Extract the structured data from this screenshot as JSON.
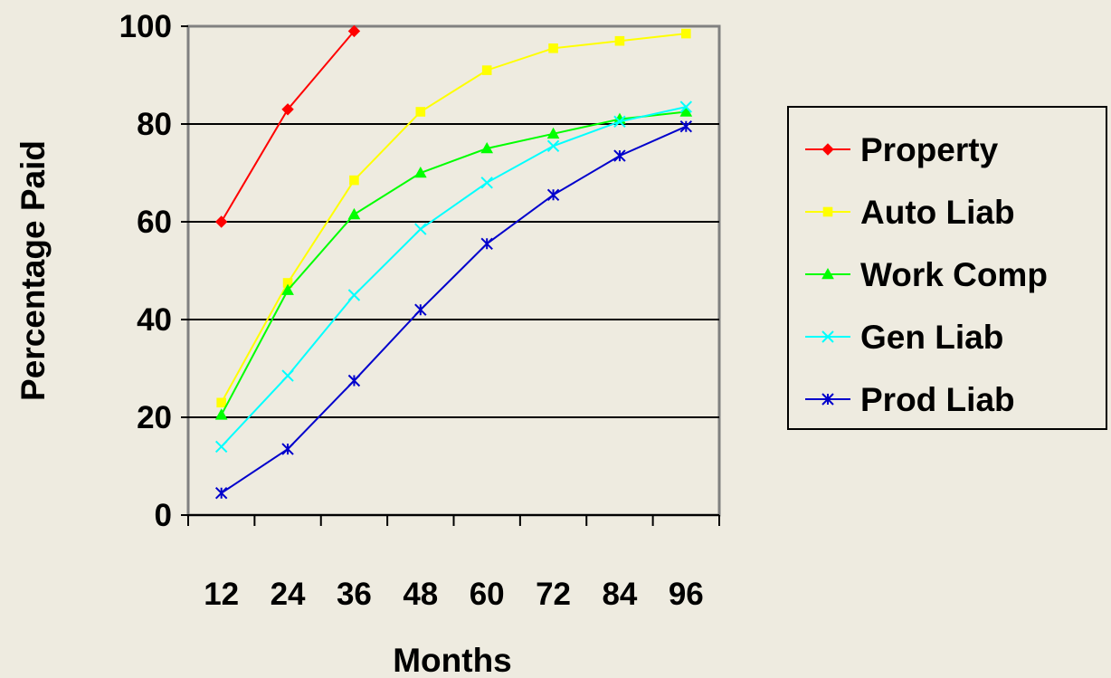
{
  "chart_data": {
    "type": "line",
    "title": "",
    "xlabel": "Months",
    "ylabel": "Percentage Paid",
    "categories": [
      "12",
      "24",
      "36",
      "48",
      "60",
      "72",
      "84",
      "96"
    ],
    "ylim": [
      0,
      100
    ],
    "yticks": [
      "0",
      "20",
      "40",
      "60",
      "80",
      "100"
    ],
    "grid": "horizontal",
    "legend_position": "right",
    "series": [
      {
        "name": "Property",
        "color": "#ff0000",
        "marker": "diamond",
        "values": [
          60,
          83,
          99,
          null,
          null,
          null,
          null,
          null
        ]
      },
      {
        "name": "Auto Liab",
        "color": "#ffff00",
        "marker": "square",
        "values": [
          23,
          47.5,
          68.5,
          82.5,
          91,
          95.5,
          97,
          98.5
        ]
      },
      {
        "name": "Work Comp",
        "color": "#00ff00",
        "marker": "triangle",
        "values": [
          20.5,
          46,
          61.5,
          70,
          75,
          78,
          81,
          82.5
        ]
      },
      {
        "name": "Gen Liab",
        "color": "#00ffff",
        "marker": "x",
        "values": [
          14,
          28.5,
          45,
          58.5,
          68,
          75.5,
          80.5,
          83.5
        ]
      },
      {
        "name": "Prod Liab",
        "color": "#0000cc",
        "marker": "star",
        "values": [
          4.5,
          13.5,
          27.5,
          42,
          55.5,
          65.5,
          73.5,
          79.5
        ]
      }
    ]
  }
}
